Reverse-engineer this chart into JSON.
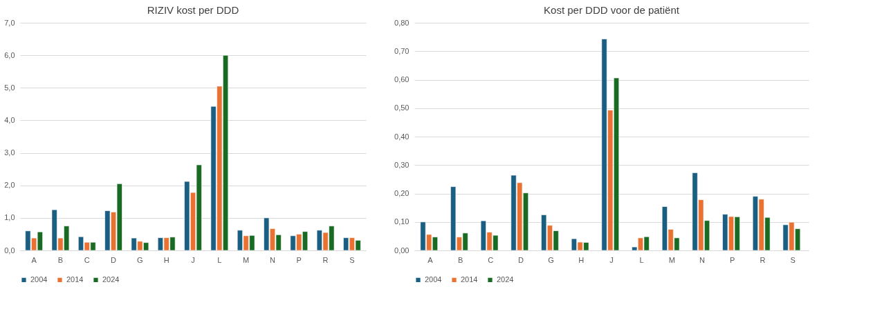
{
  "chart_data": [
    {
      "type": "bar",
      "title": "RIZIV kost per DDD",
      "categories": [
        "A",
        "B",
        "C",
        "D",
        "G",
        "H",
        "J",
        "L",
        "M",
        "N",
        "P",
        "R",
        "S"
      ],
      "series": [
        {
          "name": "2004",
          "color": "#1a5e82",
          "values": [
            0.6,
            1.25,
            0.42,
            1.22,
            0.38,
            0.39,
            2.12,
            4.43,
            0.62,
            1.0,
            0.45,
            0.62,
            0.39
          ]
        },
        {
          "name": "2014",
          "color": "#e97132",
          "values": [
            0.38,
            0.38,
            0.25,
            1.18,
            0.28,
            0.39,
            1.78,
            5.05,
            0.45,
            0.67,
            0.5,
            0.55,
            0.39
          ]
        },
        {
          "name": "2024",
          "color": "#196b24",
          "values": [
            0.57,
            0.75,
            0.25,
            2.05,
            0.24,
            0.41,
            2.63,
            6.0,
            0.46,
            0.48,
            0.58,
            0.75,
            0.31
          ]
        }
      ],
      "ylim": [
        0,
        7
      ],
      "yticks": [
        {
          "value": 0,
          "label": "0,0"
        },
        {
          "value": 1,
          "label": "1,0"
        },
        {
          "value": 2,
          "label": "2,0"
        },
        {
          "value": 3,
          "label": "3,0"
        },
        {
          "value": 4,
          "label": "4,0"
        },
        {
          "value": 5,
          "label": "5,0"
        },
        {
          "value": 6,
          "label": "6,0"
        },
        {
          "value": 7,
          "label": "7,0"
        }
      ],
      "grid": "y",
      "legend": "bottom"
    },
    {
      "type": "bar",
      "title": "Kost per DDD voor de patiënt",
      "categories": [
        "A",
        "B",
        "C",
        "D",
        "G",
        "H",
        "J",
        "L",
        "M",
        "N",
        "P",
        "R",
        "S"
      ],
      "series": [
        {
          "name": "2004",
          "color": "#1a5e82",
          "values": [
            0.1,
            0.224,
            0.104,
            0.264,
            0.125,
            0.041,
            0.743,
            0.012,
            0.154,
            0.273,
            0.127,
            0.19,
            0.09
          ]
        },
        {
          "name": "2014",
          "color": "#e97132",
          "values": [
            0.056,
            0.047,
            0.064,
            0.238,
            0.088,
            0.029,
            0.493,
            0.044,
            0.074,
            0.178,
            0.119,
            0.18,
            0.099
          ]
        },
        {
          "name": "2024",
          "color": "#196b24",
          "values": [
            0.047,
            0.061,
            0.053,
            0.202,
            0.069,
            0.028,
            0.606,
            0.048,
            0.044,
            0.105,
            0.118,
            0.116,
            0.076
          ]
        }
      ],
      "ylim": [
        0,
        0.8
      ],
      "yticks": [
        {
          "value": 0,
          "label": "0,00"
        },
        {
          "value": 0.1,
          "label": "0,10"
        },
        {
          "value": 0.2,
          "label": "0,20"
        },
        {
          "value": 0.3,
          "label": "0,30"
        },
        {
          "value": 0.4,
          "label": "0,40"
        },
        {
          "value": 0.5,
          "label": "0,50"
        },
        {
          "value": 0.6,
          "label": "0,60"
        },
        {
          "value": 0.7,
          "label": "0,70"
        },
        {
          "value": 0.8,
          "label": "0,80"
        }
      ],
      "grid": "y",
      "legend": "bottom"
    }
  ]
}
